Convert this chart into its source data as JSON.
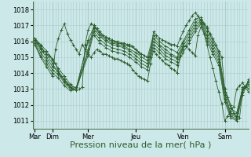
{
  "background_color": "#cce8e8",
  "grid_color": "#aacccc",
  "line_color": "#2d5e2d",
  "xlabel": "Pression niveau de la mer( hPa )",
  "xlabel_fontsize": 8,
  "ylim": [
    1010.5,
    1018.5
  ],
  "yticks": [
    1011,
    1012,
    1013,
    1014,
    1015,
    1016,
    1017,
    1018
  ],
  "day_labels": [
    "Mar",
    "Dim",
    "Mer",
    "Jeu",
    "Ven",
    "Sam"
  ],
  "day_positions": [
    0,
    18,
    54,
    102,
    150,
    192
  ],
  "xlim": [
    -2,
    216
  ],
  "series": [
    [
      0,
      1016.2,
      3,
      1015.9,
      6,
      1015.6,
      9,
      1015.4,
      12,
      1015.2,
      15,
      1015.1,
      18,
      1014.9,
      21,
      1014.6,
      24,
      1014.1,
      27,
      1013.8,
      30,
      1013.5,
      33,
      1013.3,
      36,
      1013.1,
      39,
      1013.0,
      42,
      1013.0,
      45,
      1013.0,
      48,
      1013.1,
      51,
      1015.8,
      54,
      1016.7,
      57,
      1017.1,
      60,
      1017.0,
      63,
      1016.8,
      66,
      1016.6,
      69,
      1016.4,
      72,
      1016.3,
      75,
      1016.2,
      78,
      1016.1,
      81,
      1016.0,
      84,
      1016.0,
      87,
      1015.9,
      90,
      1015.9,
      93,
      1015.8,
      96,
      1015.8,
      99,
      1015.7,
      102,
      1015.5,
      105,
      1015.3,
      108,
      1015.2,
      111,
      1015.1,
      114,
      1015.0,
      117,
      1015.0,
      120,
      1016.6,
      123,
      1016.4,
      126,
      1016.2,
      129,
      1016.1,
      132,
      1016.0,
      135,
      1015.9,
      138,
      1015.8,
      141,
      1015.8,
      144,
      1015.7,
      147,
      1016.2,
      150,
      1016.6,
      153,
      1017.0,
      156,
      1017.3,
      159,
      1017.6,
      162,
      1017.8,
      165,
      1017.6,
      168,
      1017.3,
      171,
      1017.1,
      174,
      1016.9,
      177,
      1016.5,
      180,
      1016.2,
      183,
      1015.8,
      186,
      1015.4,
      189,
      1015.0,
      192,
      1013.0,
      195,
      1012.5,
      198,
      1012.0,
      201,
      1011.5,
      204,
      1011.3,
      207,
      1011.2,
      210,
      1012.8,
      213,
      1013.2,
      216,
      1013.0
    ],
    [
      0,
      1016.2,
      6,
      1015.8,
      12,
      1015.4,
      18,
      1014.8,
      24,
      1014.3,
      30,
      1013.8,
      36,
      1013.3,
      42,
      1013.0,
      54,
      1016.1,
      60,
      1016.9,
      66,
      1016.5,
      72,
      1016.2,
      78,
      1016.0,
      84,
      1015.9,
      90,
      1015.8,
      96,
      1015.7,
      102,
      1015.5,
      108,
      1015.2,
      114,
      1015.0,
      120,
      1016.4,
      126,
      1016.0,
      132,
      1015.7,
      138,
      1015.5,
      144,
      1015.3,
      150,
      1016.0,
      156,
      1016.7,
      162,
      1017.4,
      168,
      1017.5,
      174,
      1016.8,
      180,
      1016.0,
      186,
      1015.3,
      192,
      1013.0,
      198,
      1011.8,
      204,
      1011.5,
      210,
      1013.0,
      216,
      1013.2
    ],
    [
      0,
      1016.2,
      6,
      1015.7,
      12,
      1015.2,
      18,
      1014.6,
      24,
      1014.0,
      30,
      1013.6,
      36,
      1013.1,
      42,
      1012.9,
      54,
      1015.5,
      60,
      1017.0,
      66,
      1016.4,
      72,
      1016.1,
      78,
      1015.9,
      84,
      1015.8,
      90,
      1015.7,
      96,
      1015.5,
      102,
      1015.3,
      108,
      1015.0,
      114,
      1014.8,
      120,
      1016.2,
      126,
      1015.8,
      132,
      1015.5,
      138,
      1015.2,
      144,
      1015.0,
      150,
      1015.9,
      156,
      1016.5,
      162,
      1017.2,
      168,
      1017.4,
      174,
      1016.6,
      180,
      1015.8,
      186,
      1015.1,
      192,
      1012.8,
      198,
      1011.5,
      204,
      1011.3,
      210,
      1013.1,
      216,
      1013.3
    ],
    [
      0,
      1016.1,
      6,
      1015.5,
      12,
      1015.0,
      18,
      1014.4,
      24,
      1014.1,
      30,
      1013.6,
      36,
      1013.2,
      42,
      1013.1,
      54,
      1015.3,
      60,
      1016.8,
      66,
      1016.3,
      72,
      1016.0,
      78,
      1015.8,
      84,
      1015.7,
      90,
      1015.6,
      96,
      1015.4,
      102,
      1015.1,
      108,
      1014.8,
      114,
      1014.6,
      120,
      1016.0,
      126,
      1015.7,
      132,
      1015.3,
      138,
      1015.1,
      144,
      1014.9,
      150,
      1015.7,
      156,
      1016.3,
      162,
      1017.0,
      168,
      1017.3,
      174,
      1016.4,
      180,
      1015.6,
      186,
      1014.9,
      192,
      1012.6,
      198,
      1011.4,
      204,
      1011.2,
      210,
      1013.0,
      216,
      1013.4
    ],
    [
      0,
      1016.0,
      6,
      1015.3,
      12,
      1014.8,
      18,
      1014.2,
      24,
      1013.9,
      30,
      1013.4,
      36,
      1013.0,
      42,
      1013.0,
      54,
      1015.1,
      60,
      1016.6,
      66,
      1016.1,
      72,
      1015.8,
      78,
      1015.6,
      84,
      1015.5,
      90,
      1015.4,
      96,
      1015.2,
      102,
      1014.9,
      108,
      1014.6,
      114,
      1014.4,
      120,
      1015.8,
      126,
      1015.5,
      132,
      1015.1,
      138,
      1014.9,
      144,
      1014.7,
      150,
      1015.5,
      156,
      1016.1,
      162,
      1016.8,
      168,
      1017.2,
      174,
      1016.2,
      180,
      1015.4,
      186,
      1014.7,
      192,
      1012.4,
      198,
      1011.3,
      204,
      1011.1,
      210,
      1012.8,
      216,
      1013.5
    ],
    [
      0,
      1015.9,
      6,
      1015.1,
      12,
      1014.6,
      18,
      1014.0,
      24,
      1013.7,
      30,
      1013.2,
      36,
      1012.9,
      42,
      1013.0,
      54,
      1016.0,
      60,
      1016.4,
      66,
      1015.9,
      72,
      1015.6,
      78,
      1015.4,
      84,
      1015.3,
      90,
      1015.2,
      96,
      1015.0,
      102,
      1014.7,
      108,
      1014.4,
      114,
      1014.2,
      120,
      1015.6,
      126,
      1015.3,
      132,
      1014.9,
      138,
      1014.7,
      144,
      1014.5,
      150,
      1015.3,
      156,
      1015.9,
      162,
      1016.6,
      168,
      1017.1,
      174,
      1016.0,
      180,
      1015.2,
      186,
      1014.5,
      192,
      1012.2,
      198,
      1011.2,
      204,
      1011.0,
      210,
      1012.6,
      216,
      1013.6
    ],
    [
      0,
      1015.8,
      6,
      1015.0,
      12,
      1014.4,
      18,
      1013.8,
      21,
      1015.5,
      24,
      1016.2,
      27,
      1016.7,
      30,
      1017.1,
      33,
      1016.5,
      36,
      1016.1,
      39,
      1015.8,
      42,
      1015.5,
      45,
      1015.2,
      48,
      1015.8,
      51,
      1015.5,
      54,
      1015.2,
      57,
      1015.0,
      60,
      1015.3,
      63,
      1015.5,
      66,
      1015.4,
      69,
      1015.2,
      72,
      1015.2,
      75,
      1015.1,
      78,
      1015.0,
      81,
      1014.9,
      84,
      1014.9,
      87,
      1014.8,
      90,
      1014.7,
      93,
      1014.6,
      96,
      1014.5,
      99,
      1014.2,
      102,
      1014.0,
      105,
      1013.8,
      108,
      1013.7,
      111,
      1013.6,
      114,
      1013.5,
      117,
      1014.6,
      120,
      1015.4,
      123,
      1015.2,
      126,
      1015.0,
      129,
      1014.8,
      132,
      1014.6,
      135,
      1014.5,
      138,
      1014.3,
      141,
      1014.2,
      144,
      1014.0,
      147,
      1015.1,
      150,
      1015.7,
      153,
      1015.7,
      156,
      1015.5,
      159,
      1015.3,
      162,
      1015.1,
      165,
      1016.4,
      168,
      1016.9,
      171,
      1016.5,
      174,
      1015.8,
      177,
      1015.0,
      180,
      1014.3,
      183,
      1013.5,
      186,
      1012.8,
      189,
      1012.1,
      192,
      1011.0,
      195,
      1011.3,
      198,
      1011.6,
      201,
      1011.9,
      204,
      1013.0,
      207,
      1013.2,
      210,
      1013.4,
      213,
      1013.1,
      216,
      1012.8
    ]
  ]
}
